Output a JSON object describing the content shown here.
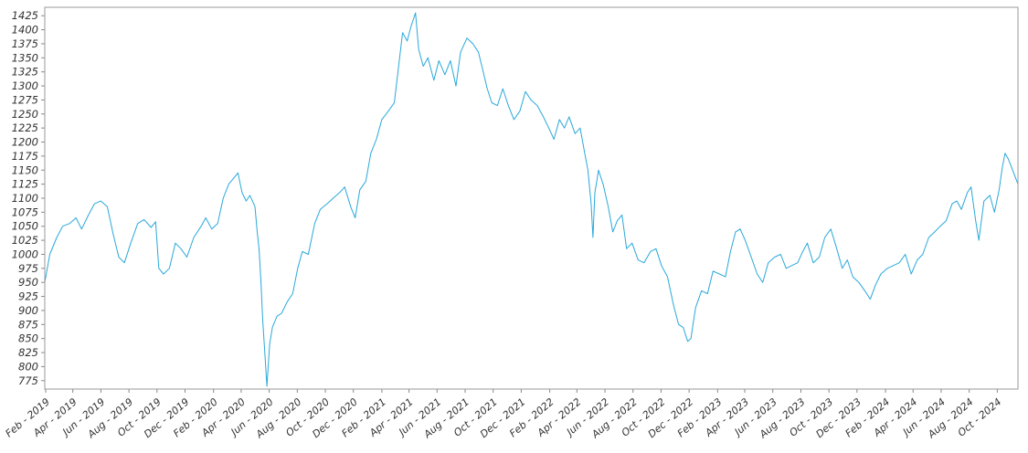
{
  "chart_data": {
    "type": "line",
    "title": "",
    "xlabel": "",
    "ylabel": "",
    "x_range": [
      "2019-01-30",
      "2024-11-15"
    ],
    "ylim": [
      760,
      1440
    ],
    "grid": false,
    "legend": "none",
    "y_ticks": [
      775,
      800,
      825,
      850,
      875,
      900,
      925,
      950,
      975,
      1000,
      1025,
      1050,
      1075,
      1100,
      1125,
      1150,
      1175,
      1200,
      1225,
      1250,
      1275,
      1300,
      1325,
      1350,
      1375,
      1400,
      1425
    ],
    "x_ticks": [
      {
        "date": "2019-02-01",
        "label": "Feb - 2019"
      },
      {
        "date": "2019-04-01",
        "label": "Apr - 2019"
      },
      {
        "date": "2019-06-01",
        "label": "Jun - 2019"
      },
      {
        "date": "2019-08-01",
        "label": "Aug - 2019"
      },
      {
        "date": "2019-10-01",
        "label": "Oct - 2019"
      },
      {
        "date": "2019-12-01",
        "label": "Dec - 2019"
      },
      {
        "date": "2020-02-01",
        "label": "Feb - 2020"
      },
      {
        "date": "2020-04-01",
        "label": "Apr - 2020"
      },
      {
        "date": "2020-06-01",
        "label": "Jun - 2020"
      },
      {
        "date": "2020-08-01",
        "label": "Aug - 2020"
      },
      {
        "date": "2020-10-01",
        "label": "Oct - 2020"
      },
      {
        "date": "2020-12-01",
        "label": "Dec - 2020"
      },
      {
        "date": "2021-02-01",
        "label": "Feb - 2021"
      },
      {
        "date": "2021-04-01",
        "label": "Apr - 2021"
      },
      {
        "date": "2021-06-01",
        "label": "Jun - 2021"
      },
      {
        "date": "2021-08-01",
        "label": "Aug - 2021"
      },
      {
        "date": "2021-10-01",
        "label": "Oct - 2021"
      },
      {
        "date": "2021-12-01",
        "label": "Dec - 2021"
      },
      {
        "date": "2022-02-01",
        "label": "Feb - 2022"
      },
      {
        "date": "2022-04-01",
        "label": "Apr - 2022"
      },
      {
        "date": "2022-06-01",
        "label": "Jun - 2022"
      },
      {
        "date": "2022-08-01",
        "label": "Aug - 2022"
      },
      {
        "date": "2022-10-01",
        "label": "Oct - 2022"
      },
      {
        "date": "2022-12-01",
        "label": "Dec - 2022"
      },
      {
        "date": "2023-02-01",
        "label": "Feb - 2023"
      },
      {
        "date": "2023-04-01",
        "label": "Apr - 2023"
      },
      {
        "date": "2023-06-01",
        "label": "Jun - 2023"
      },
      {
        "date": "2023-08-01",
        "label": "Aug - 2023"
      },
      {
        "date": "2023-10-01",
        "label": "Oct - 2023"
      },
      {
        "date": "2023-12-01",
        "label": "Dec - 2023"
      },
      {
        "date": "2024-02-01",
        "label": "Feb - 2024"
      },
      {
        "date": "2024-04-01",
        "label": "Apr - 2024"
      },
      {
        "date": "2024-06-01",
        "label": "Jun - 2024"
      },
      {
        "date": "2024-08-01",
        "label": "Aug - 2024"
      },
      {
        "date": "2024-10-01",
        "label": "Oct - 2024"
      }
    ],
    "series": [
      {
        "color": "#29a8d9",
        "points": [
          [
            "2019-01-30",
            950
          ],
          [
            "2019-02-10",
            1000
          ],
          [
            "2019-02-25",
            1030
          ],
          [
            "2019-03-10",
            1050
          ],
          [
            "2019-03-25",
            1055
          ],
          [
            "2019-04-08",
            1065
          ],
          [
            "2019-04-20",
            1045
          ],
          [
            "2019-05-05",
            1070
          ],
          [
            "2019-05-18",
            1090
          ],
          [
            "2019-06-01",
            1095
          ],
          [
            "2019-06-15",
            1085
          ],
          [
            "2019-06-28",
            1035
          ],
          [
            "2019-07-10",
            995
          ],
          [
            "2019-07-22",
            985
          ],
          [
            "2019-08-05",
            1020
          ],
          [
            "2019-08-20",
            1055
          ],
          [
            "2019-09-03",
            1062
          ],
          [
            "2019-09-18",
            1048
          ],
          [
            "2019-09-28",
            1058
          ],
          [
            "2019-10-05",
            975
          ],
          [
            "2019-10-15",
            965
          ],
          [
            "2019-10-28",
            975
          ],
          [
            "2019-11-10",
            1020
          ],
          [
            "2019-11-22",
            1010
          ],
          [
            "2019-12-05",
            995
          ],
          [
            "2019-12-20",
            1030
          ],
          [
            "2020-01-05",
            1050
          ],
          [
            "2020-01-15",
            1065
          ],
          [
            "2020-01-28",
            1045
          ],
          [
            "2020-02-10",
            1055
          ],
          [
            "2020-02-22",
            1100
          ],
          [
            "2020-03-05",
            1125
          ],
          [
            "2020-03-15",
            1135
          ],
          [
            "2020-03-25",
            1145
          ],
          [
            "2020-04-03",
            1110
          ],
          [
            "2020-04-12",
            1095
          ],
          [
            "2020-04-20",
            1105
          ],
          [
            "2020-05-01",
            1085
          ],
          [
            "2020-05-06",
            1040
          ],
          [
            "2020-05-10",
            1010
          ],
          [
            "2020-05-14",
            950
          ],
          [
            "2020-05-18",
            880
          ],
          [
            "2020-05-22",
            830
          ],
          [
            "2020-05-27",
            765
          ],
          [
            "2020-06-02",
            840
          ],
          [
            "2020-06-08",
            870
          ],
          [
            "2020-06-18",
            890
          ],
          [
            "2020-06-28",
            895
          ],
          [
            "2020-07-10",
            915
          ],
          [
            "2020-07-22",
            930
          ],
          [
            "2020-08-02",
            975
          ],
          [
            "2020-08-12",
            1005
          ],
          [
            "2020-08-25",
            1000
          ],
          [
            "2020-09-08",
            1055
          ],
          [
            "2020-09-20",
            1080
          ],
          [
            "2020-10-05",
            1090
          ],
          [
            "2020-10-18",
            1100
          ],
          [
            "2020-11-01",
            1110
          ],
          [
            "2020-11-12",
            1120
          ],
          [
            "2020-11-25",
            1085
          ],
          [
            "2020-12-05",
            1065
          ],
          [
            "2020-12-15",
            1115
          ],
          [
            "2020-12-28",
            1130
          ],
          [
            "2021-01-08",
            1180
          ],
          [
            "2021-01-20",
            1205
          ],
          [
            "2021-02-01",
            1240
          ],
          [
            "2021-02-15",
            1255
          ],
          [
            "2021-02-28",
            1270
          ],
          [
            "2021-03-08",
            1325
          ],
          [
            "2021-03-18",
            1395
          ],
          [
            "2021-03-28",
            1380
          ],
          [
            "2021-04-05",
            1405
          ],
          [
            "2021-04-15",
            1430
          ],
          [
            "2021-04-22",
            1365
          ],
          [
            "2021-05-02",
            1335
          ],
          [
            "2021-05-12",
            1350
          ],
          [
            "2021-05-25",
            1310
          ],
          [
            "2021-06-05",
            1345
          ],
          [
            "2021-06-18",
            1320
          ],
          [
            "2021-06-30",
            1345
          ],
          [
            "2021-07-12",
            1300
          ],
          [
            "2021-07-22",
            1360
          ],
          [
            "2021-08-05",
            1385
          ],
          [
            "2021-08-18",
            1375
          ],
          [
            "2021-08-30",
            1360
          ],
          [
            "2021-09-08",
            1330
          ],
          [
            "2021-09-18",
            1295
          ],
          [
            "2021-09-28",
            1270
          ],
          [
            "2021-10-10",
            1265
          ],
          [
            "2021-10-22",
            1295
          ],
          [
            "2021-11-03",
            1265
          ],
          [
            "2021-11-15",
            1240
          ],
          [
            "2021-11-28",
            1255
          ],
          [
            "2021-12-10",
            1290
          ],
          [
            "2021-12-22",
            1275
          ],
          [
            "2022-01-05",
            1265
          ],
          [
            "2022-01-18",
            1245
          ],
          [
            "2022-01-30",
            1225
          ],
          [
            "2022-02-10",
            1205
          ],
          [
            "2022-02-22",
            1240
          ],
          [
            "2022-03-05",
            1225
          ],
          [
            "2022-03-15",
            1245
          ],
          [
            "2022-03-28",
            1215
          ],
          [
            "2022-04-08",
            1225
          ],
          [
            "2022-04-18",
            1180
          ],
          [
            "2022-04-25",
            1150
          ],
          [
            "2022-05-02",
            1090
          ],
          [
            "2022-05-06",
            1030
          ],
          [
            "2022-05-10",
            1110
          ],
          [
            "2022-05-18",
            1150
          ],
          [
            "2022-05-28",
            1125
          ],
          [
            "2022-06-08",
            1085
          ],
          [
            "2022-06-18",
            1040
          ],
          [
            "2022-06-28",
            1060
          ],
          [
            "2022-07-08",
            1070
          ],
          [
            "2022-07-18",
            1010
          ],
          [
            "2022-07-30",
            1020
          ],
          [
            "2022-08-12",
            990
          ],
          [
            "2022-08-25",
            985
          ],
          [
            "2022-09-08",
            1005
          ],
          [
            "2022-09-20",
            1010
          ],
          [
            "2022-10-02",
            980
          ],
          [
            "2022-10-15",
            960
          ],
          [
            "2022-10-28",
            910
          ],
          [
            "2022-11-08",
            875
          ],
          [
            "2022-11-18",
            870
          ],
          [
            "2022-11-28",
            845
          ],
          [
            "2022-12-05",
            850
          ],
          [
            "2022-12-15",
            905
          ],
          [
            "2022-12-28",
            935
          ],
          [
            "2023-01-10",
            930
          ],
          [
            "2023-01-22",
            970
          ],
          [
            "2023-02-05",
            965
          ],
          [
            "2023-02-18",
            960
          ],
          [
            "2023-03-01",
            1005
          ],
          [
            "2023-03-12",
            1040
          ],
          [
            "2023-03-22",
            1045
          ],
          [
            "2023-04-02",
            1025
          ],
          [
            "2023-04-15",
            995
          ],
          [
            "2023-04-28",
            965
          ],
          [
            "2023-05-10",
            950
          ],
          [
            "2023-05-22",
            985
          ],
          [
            "2023-06-05",
            995
          ],
          [
            "2023-06-18",
            1000
          ],
          [
            "2023-06-30",
            975
          ],
          [
            "2023-07-12",
            980
          ],
          [
            "2023-07-25",
            985
          ],
          [
            "2023-08-05",
            1005
          ],
          [
            "2023-08-15",
            1020
          ],
          [
            "2023-08-28",
            985
          ],
          [
            "2023-09-10",
            995
          ],
          [
            "2023-09-22",
            1030
          ],
          [
            "2023-10-05",
            1045
          ],
          [
            "2023-10-18",
            1010
          ],
          [
            "2023-10-30",
            975
          ],
          [
            "2023-11-10",
            990
          ],
          [
            "2023-11-22",
            960
          ],
          [
            "2023-12-05",
            950
          ],
          [
            "2023-12-18",
            935
          ],
          [
            "2023-12-30",
            920
          ],
          [
            "2024-01-10",
            945
          ],
          [
            "2024-01-22",
            965
          ],
          [
            "2024-02-05",
            975
          ],
          [
            "2024-02-18",
            980
          ],
          [
            "2024-03-02",
            985
          ],
          [
            "2024-03-15",
            1000
          ],
          [
            "2024-03-28",
            965
          ],
          [
            "2024-04-10",
            990
          ],
          [
            "2024-04-22",
            1000
          ],
          [
            "2024-05-05",
            1030
          ],
          [
            "2024-05-18",
            1040
          ],
          [
            "2024-05-30",
            1050
          ],
          [
            "2024-06-12",
            1060
          ],
          [
            "2024-06-25",
            1090
          ],
          [
            "2024-07-05",
            1095
          ],
          [
            "2024-07-15",
            1080
          ],
          [
            "2024-07-28",
            1110
          ],
          [
            "2024-08-05",
            1120
          ],
          [
            "2024-08-15",
            1060
          ],
          [
            "2024-08-22",
            1025
          ],
          [
            "2024-09-02",
            1095
          ],
          [
            "2024-09-15",
            1105
          ],
          [
            "2024-09-25",
            1075
          ],
          [
            "2024-10-05",
            1115
          ],
          [
            "2024-10-12",
            1155
          ],
          [
            "2024-10-18",
            1180
          ],
          [
            "2024-10-25",
            1170
          ],
          [
            "2024-11-01",
            1155
          ],
          [
            "2024-11-08",
            1140
          ],
          [
            "2024-11-15",
            1125
          ]
        ]
      }
    ]
  }
}
